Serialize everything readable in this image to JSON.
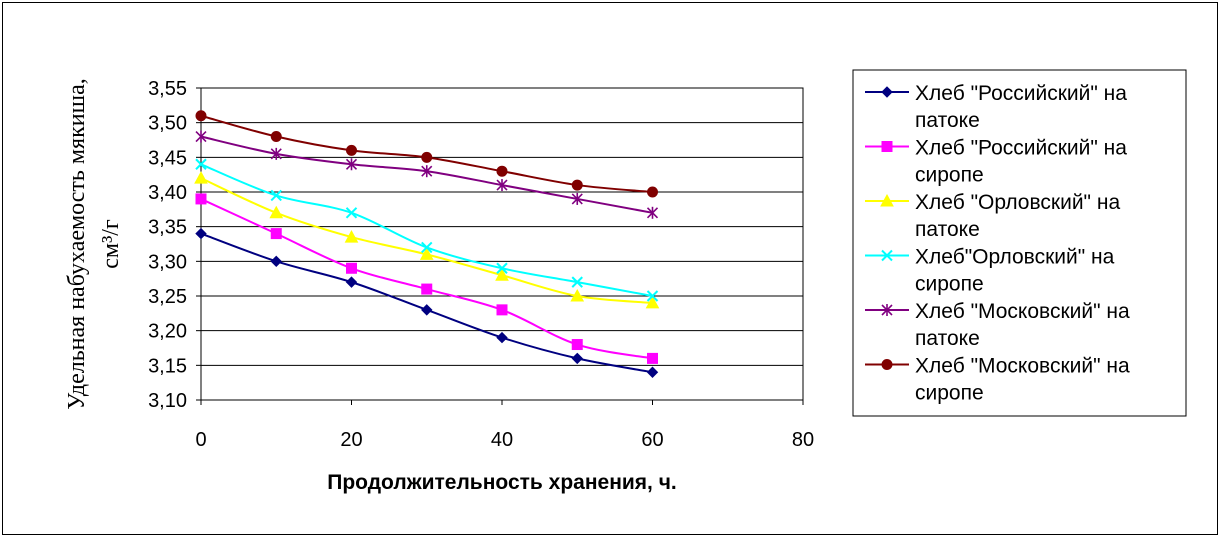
{
  "chart_data": {
    "type": "line",
    "title": "",
    "xlabel": "Продолжительность хранения, ч.",
    "ylabel": "Удельная набухаемость мякиша, см³/г",
    "xlim": [
      0,
      80
    ],
    "ylim": [
      3.1,
      3.55
    ],
    "x_ticks": [
      "0",
      "20",
      "40",
      "60",
      "80"
    ],
    "y_ticks": [
      "3,10",
      "3,15",
      "3,20",
      "3,25",
      "3,30",
      "3,35",
      "3,40",
      "3,45",
      "3,50",
      "3,55"
    ],
    "grid": "horizontal",
    "legend_position": "right",
    "x": [
      0,
      10,
      20,
      30,
      40,
      50,
      60
    ],
    "series": [
      {
        "name": "Хлеб \"Российский\" на патоке",
        "legend_lines": [
          "Хлеб \"Российский\" на",
          "патоке"
        ],
        "color": "#000080",
        "marker": "diamond",
        "values": [
          3.34,
          3.3,
          3.27,
          3.23,
          3.19,
          3.16,
          3.14
        ]
      },
      {
        "name": "Хлеб \"Российский\" на сиропе",
        "legend_lines": [
          "Хлеб \"Российский\" на",
          "сиропе"
        ],
        "color": "#FF00FF",
        "marker": "square",
        "values": [
          3.39,
          3.34,
          3.29,
          3.26,
          3.23,
          3.18,
          3.16
        ]
      },
      {
        "name": "Хлеб \"Орловский\" на патоке",
        "legend_lines": [
          "Хлеб \"Орловский\" на",
          "патоке"
        ],
        "color": "#FFFF00",
        "marker": "triangle",
        "values": [
          3.42,
          3.37,
          3.335,
          3.31,
          3.28,
          3.25,
          3.24
        ]
      },
      {
        "name": "Хлеб\"Орловский\" на сиропе",
        "legend_lines": [
          "Хлеб\"Орловский\" на",
          "сиропе"
        ],
        "color": "#00FFFF",
        "marker": "x",
        "values": [
          3.44,
          3.395,
          3.37,
          3.32,
          3.29,
          3.27,
          3.25
        ]
      },
      {
        "name": "Хлеб \"Московский\" на патоке",
        "legend_lines": [
          "Хлеб \"Московский\" на",
          "патоке"
        ],
        "color": "#800080",
        "marker": "asterisk",
        "values": [
          3.48,
          3.455,
          3.44,
          3.43,
          3.41,
          3.39,
          3.37
        ]
      },
      {
        "name": "Хлеб \"Московский\" на сиропе",
        "legend_lines": [
          "Хлеб \"Московский\" на",
          "сиропе"
        ],
        "color": "#800000",
        "marker": "circle",
        "values": [
          3.51,
          3.48,
          3.46,
          3.45,
          3.43,
          3.41,
          3.4
        ]
      }
    ]
  }
}
